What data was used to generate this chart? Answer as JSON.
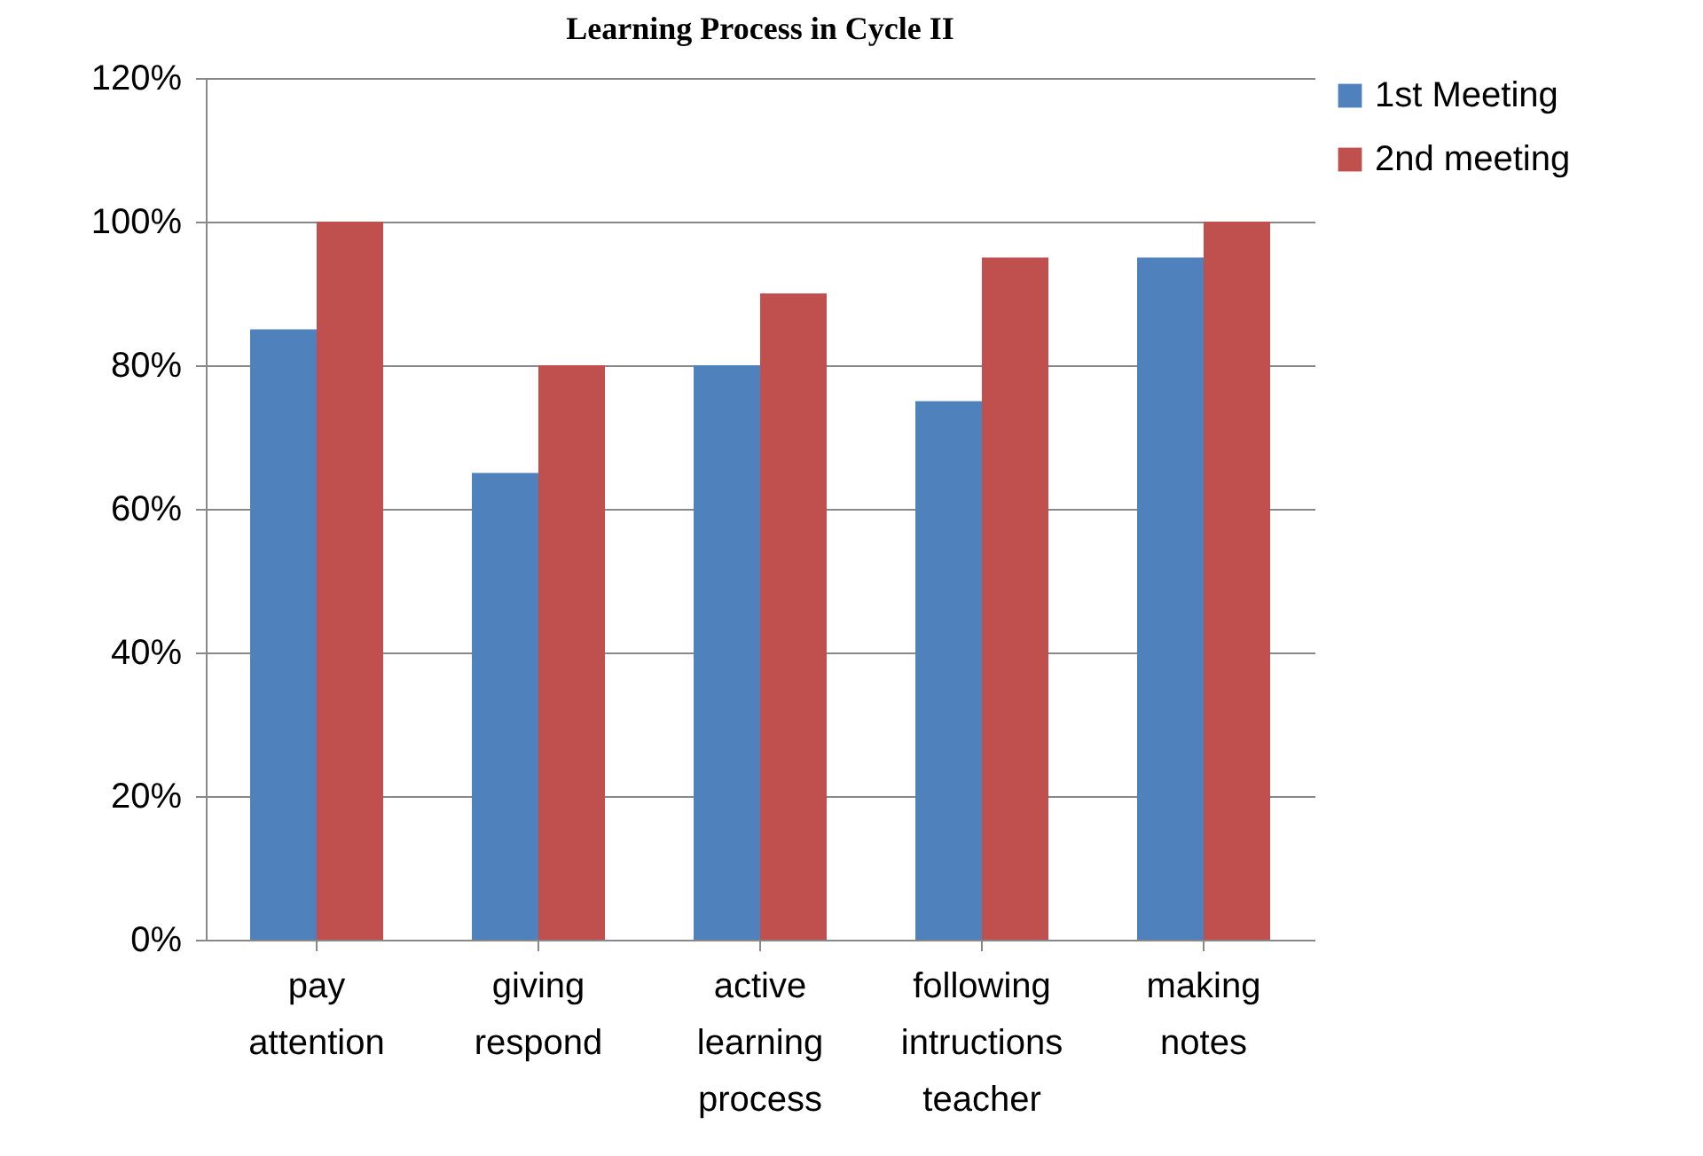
{
  "chart_data": {
    "type": "bar",
    "title": "Learning Process in Cycle II",
    "categories": [
      "pay attention",
      "giving respond",
      "active learning process",
      "following intructions teacher",
      "making notes"
    ],
    "series": [
      {
        "name": "1st Meeting",
        "color": "#4f81bd",
        "values": [
          85,
          65,
          80,
          75,
          95
        ]
      },
      {
        "name": "2nd meeting",
        "color": "#c0504d",
        "values": [
          100,
          80,
          90,
          95,
          100
        ]
      }
    ],
    "ylim": [
      0,
      120
    ],
    "yticks": [
      {
        "value": 0,
        "label": "0%"
      },
      {
        "value": 20,
        "label": "20%"
      },
      {
        "value": 40,
        "label": "40%"
      },
      {
        "value": 60,
        "label": "60%"
      },
      {
        "value": 80,
        "label": "80%"
      },
      {
        "value": 100,
        "label": "100%"
      },
      {
        "value": 120,
        "label": "120%"
      }
    ],
    "grid": "y",
    "legend": "right"
  }
}
